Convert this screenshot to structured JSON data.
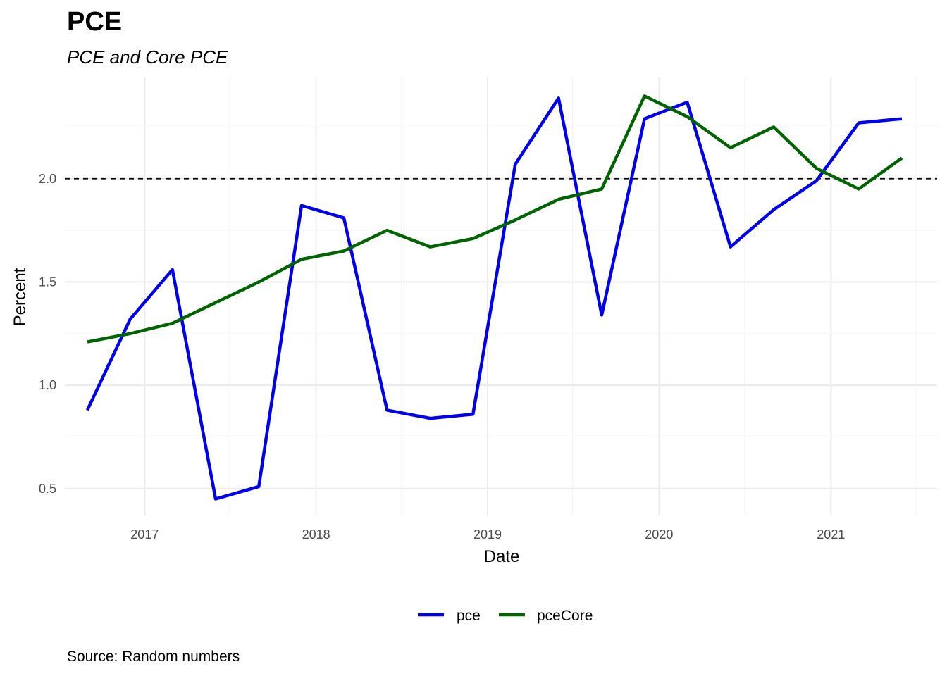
{
  "chart_data": {
    "type": "line",
    "title": "PCE",
    "subtitle": "PCE and Core PCE",
    "caption": "Source: Random numbers",
    "xlabel": "Date",
    "ylabel": "Percent",
    "x": [
      "2016-09-01",
      "2016-12-01",
      "2017-03-01",
      "2017-06-01",
      "2017-09-01",
      "2017-12-01",
      "2018-03-01",
      "2018-06-01",
      "2018-09-01",
      "2018-12-01",
      "2019-03-01",
      "2019-06-01",
      "2019-09-01",
      "2019-12-01",
      "2020-03-01",
      "2020-06-01",
      "2020-09-01",
      "2020-12-01",
      "2021-03-01",
      "2021-06-01"
    ],
    "series": [
      {
        "name": "pce",
        "color": "#0000ee",
        "values": [
          0.88,
          1.32,
          1.56,
          0.45,
          0.51,
          1.87,
          1.81,
          0.88,
          0.84,
          0.86,
          2.07,
          2.39,
          1.34,
          2.29,
          2.37,
          1.67,
          1.85,
          1.99,
          2.27,
          2.29
        ]
      },
      {
        "name": "pceCore",
        "color": "#006400",
        "values": [
          1.21,
          1.25,
          1.3,
          1.4,
          1.5,
          1.61,
          1.65,
          1.75,
          1.67,
          1.71,
          1.8,
          1.9,
          1.95,
          2.4,
          2.3,
          2.15,
          2.25,
          2.05,
          1.95,
          2.1
        ]
      }
    ],
    "reference_line": {
      "y": 2.0,
      "style": "dashed"
    },
    "xticks": [
      "2017",
      "2018",
      "2019",
      "2020",
      "2021"
    ],
    "yticks": [
      0.5,
      1.0,
      1.5,
      2.0
    ],
    "xlim": [
      "2016-07-15",
      "2021-08-15"
    ],
    "ylim": [
      0.37,
      2.49
    ],
    "grid": true,
    "legend_position": "bottom"
  }
}
